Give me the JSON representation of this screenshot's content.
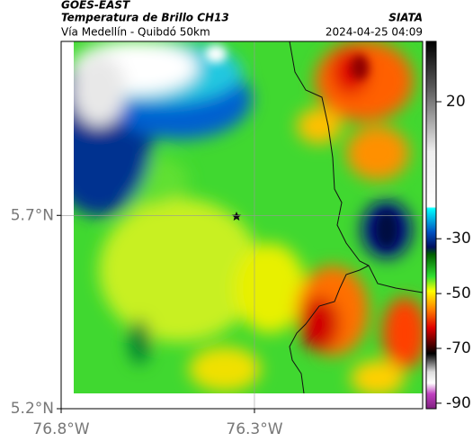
{
  "chart_data": {
    "type": "map",
    "title": "GOES-EAST",
    "subtitle": "Temperatura de Brillo CH13",
    "source": "SIATA",
    "region": "Vía Medellín - Quibdó 50km",
    "timestamp": "2024-04-25 04:09",
    "xlim": [
      -76.8,
      -75.865
    ],
    "ylim": [
      5.2,
      6.15
    ],
    "xticks": [
      {
        "value": -76.8,
        "label": "76.8°W"
      },
      {
        "value": -76.3,
        "label": "76.3°W"
      }
    ],
    "yticks": [
      {
        "value": 5.2,
        "label": "5.2°N"
      },
      {
        "value": 5.7,
        "label": "5.7°N"
      }
    ],
    "grid": true,
    "colorbar_lim": [
      -92,
      42
    ],
    "colorbar_ticks": [
      20,
      -30,
      -50,
      -70,
      -90
    ]
  }
}
